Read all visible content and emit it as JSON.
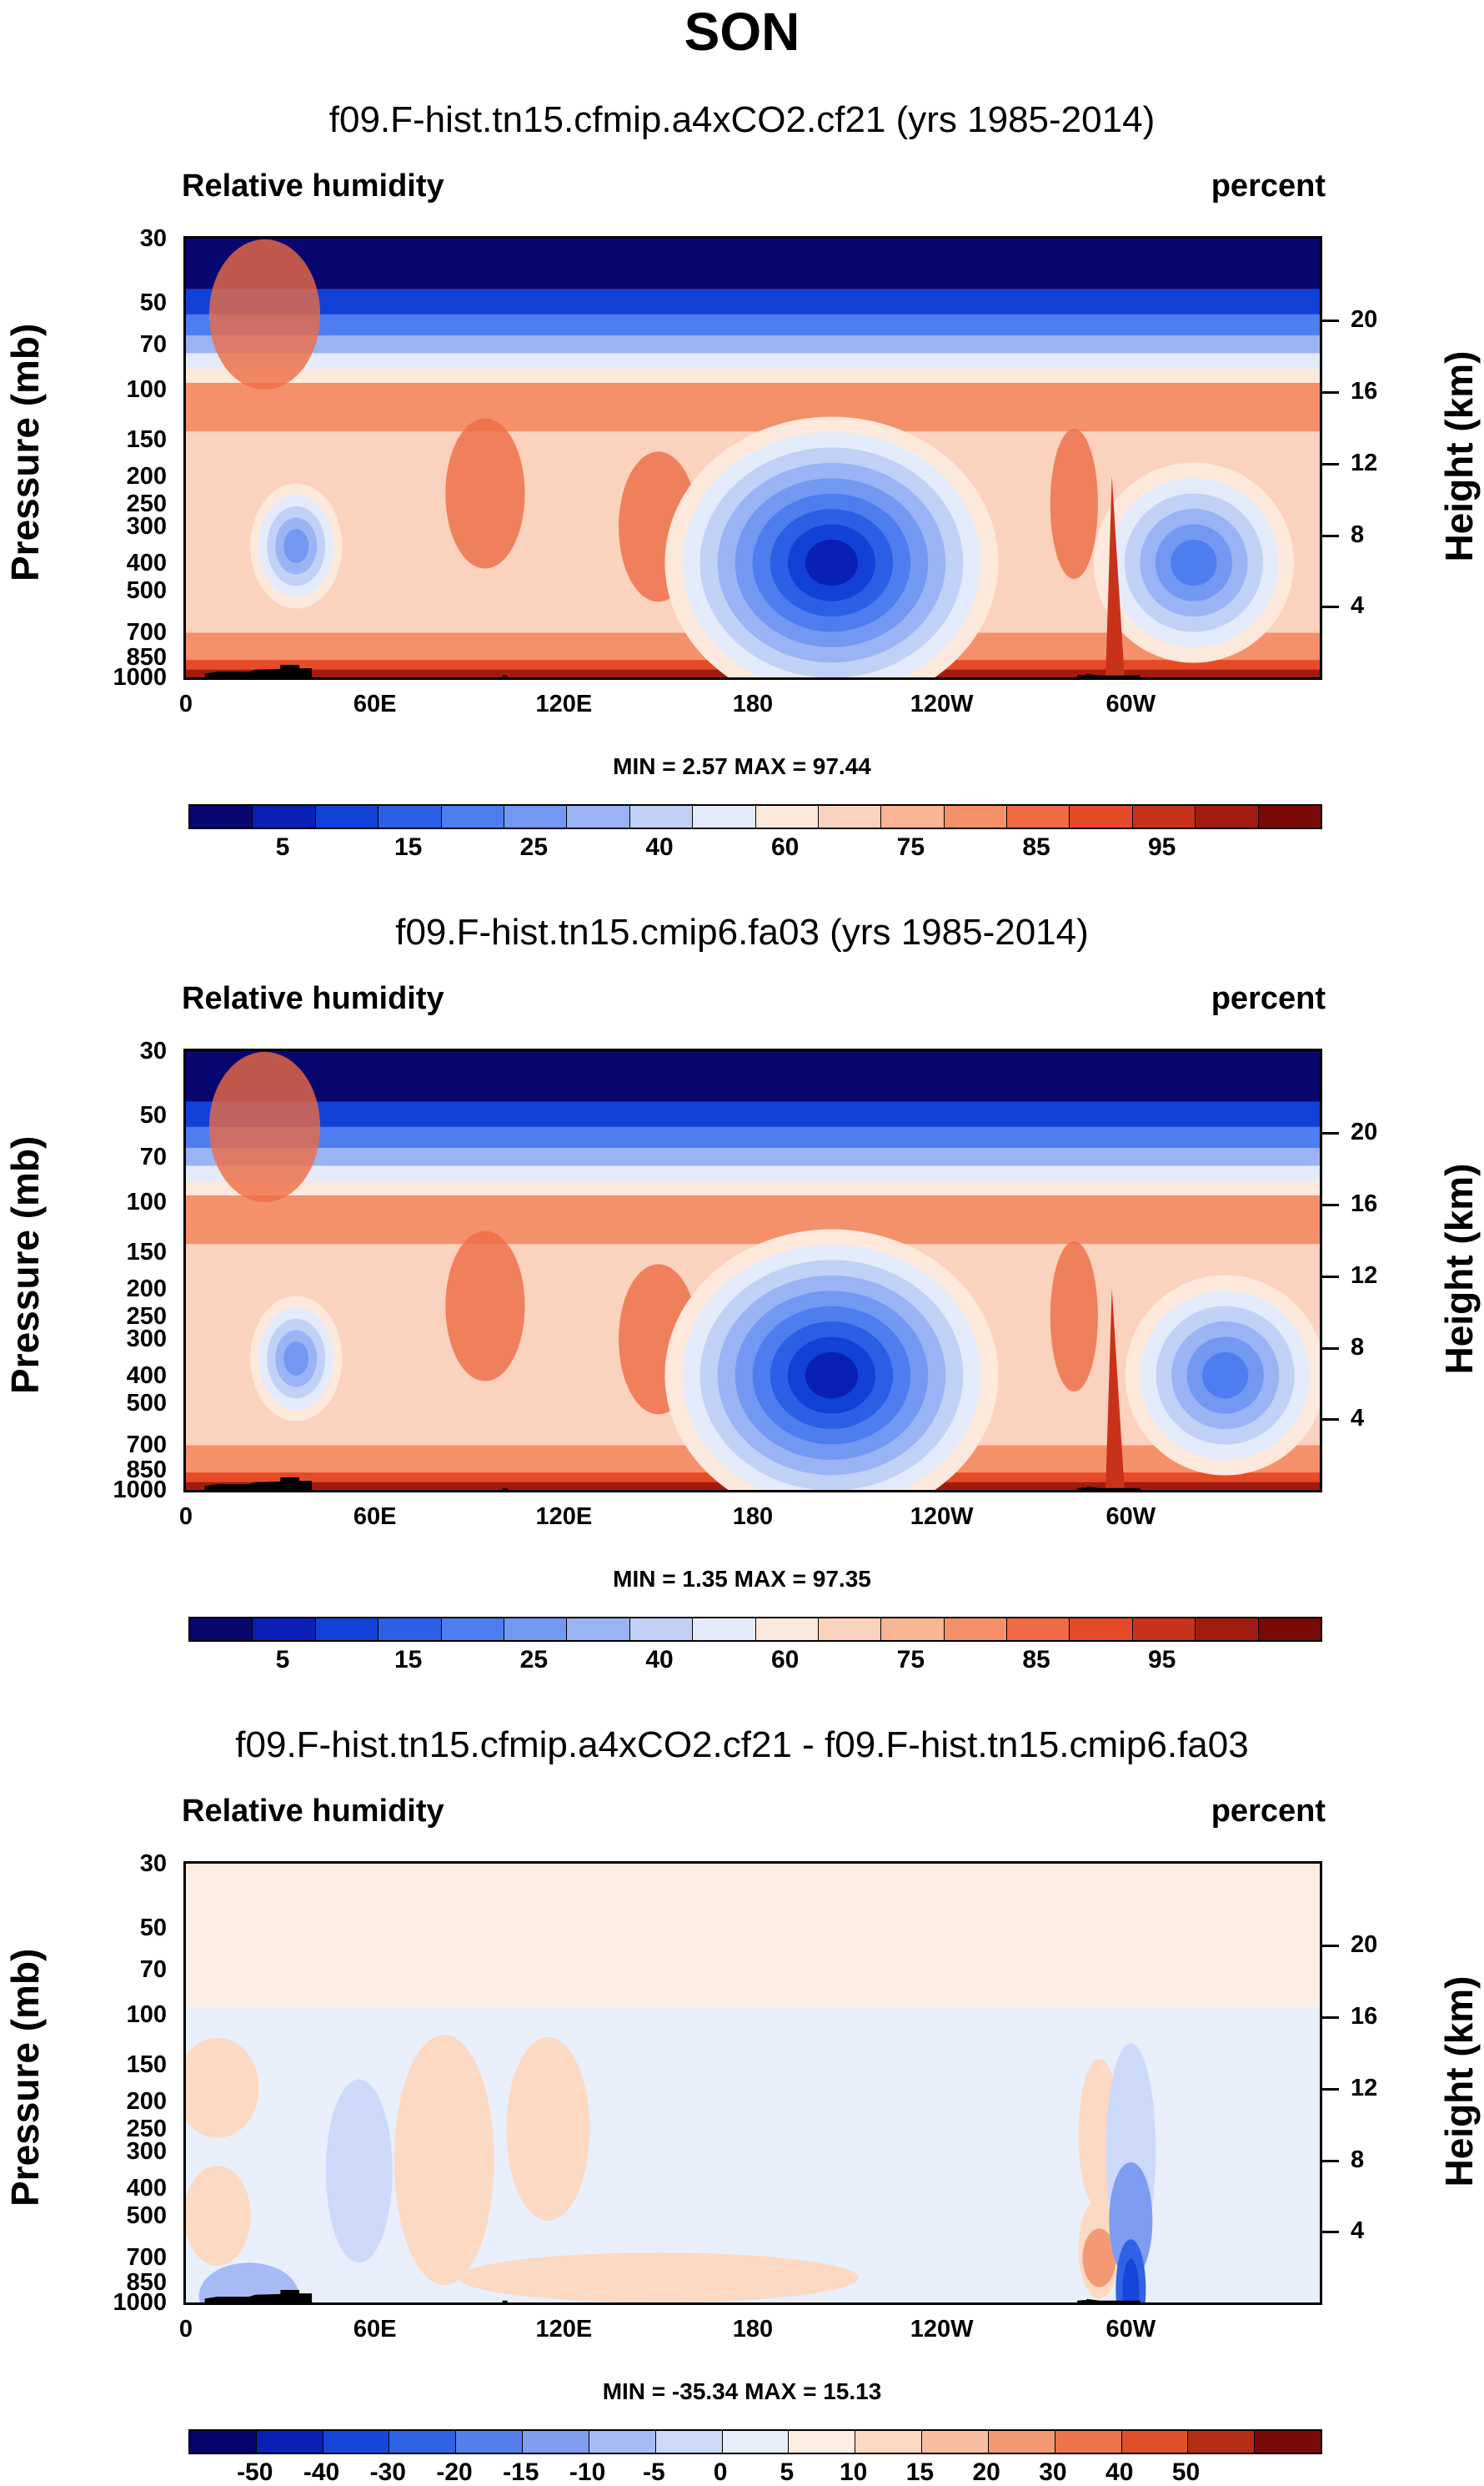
{
  "title": "SON",
  "chart_data": [
    {
      "type": "heatmap",
      "title": "f09.F-hist.tn15.cfmip.a4xCO2.cf21 (yrs 1985-2014)",
      "left_string": "Relative humidity",
      "right_string": "percent",
      "xlabel": "",
      "ylabel": "Pressure (mb)",
      "ylabel_right": "Height (km)",
      "xticks": [
        "0",
        "60E",
        "120E",
        "180",
        "120W",
        "60W"
      ],
      "pressure_ticks": [
        "30",
        "50",
        "70",
        "100",
        "150",
        "200",
        "250",
        "300",
        "400",
        "500",
        "700",
        "850",
        "1000"
      ],
      "height_ticks": [
        "20",
        "16",
        "12",
        "8",
        "4"
      ],
      "min_max": "MIN =  2.57  MAX = 97.44",
      "colorbar_labels": [
        "5",
        "15",
        "25",
        "40",
        "60",
        "75",
        "85",
        "95"
      ],
      "levels": [
        5,
        10,
        15,
        20,
        25,
        30,
        40,
        50,
        60,
        65,
        75,
        80,
        85,
        90,
        95
      ],
      "features": [
        {
          "name": "dry-central-pacific",
          "lon": 205,
          "pressure": 400,
          "value": 5
        },
        {
          "name": "dry-africa",
          "lon": 35,
          "pressure": 350,
          "value": 25
        },
        {
          "name": "dry-atlantic",
          "lon": 320,
          "pressure": 400,
          "value": 10
        },
        {
          "name": "moist-boundary-layer",
          "lon": 180,
          "pressure": 950,
          "value": 90
        }
      ]
    },
    {
      "type": "heatmap",
      "title": "f09.F-hist.tn15.cmip6.fa03 (yrs 1985-2014)",
      "left_string": "Relative humidity",
      "right_string": "percent",
      "xlabel": "",
      "ylabel": "Pressure (mb)",
      "ylabel_right": "Height (km)",
      "xticks": [
        "0",
        "60E",
        "120E",
        "180",
        "120W",
        "60W"
      ],
      "pressure_ticks": [
        "30",
        "50",
        "70",
        "100",
        "150",
        "200",
        "250",
        "300",
        "400",
        "500",
        "700",
        "850",
        "1000"
      ],
      "height_ticks": [
        "20",
        "16",
        "12",
        "8",
        "4"
      ],
      "min_max": "MIN =  1.35  MAX = 97.35",
      "colorbar_labels": [
        "5",
        "15",
        "25",
        "40",
        "60",
        "75",
        "85",
        "95"
      ],
      "levels": [
        5,
        10,
        15,
        20,
        25,
        30,
        40,
        50,
        60,
        65,
        75,
        80,
        85,
        90,
        95
      ],
      "features": [
        {
          "name": "dry-central-pacific",
          "lon": 205,
          "pressure": 400,
          "value": 5
        },
        {
          "name": "dry-africa",
          "lon": 35,
          "pressure": 350,
          "value": 25
        },
        {
          "name": "dry-atlantic",
          "lon": 330,
          "pressure": 400,
          "value": 15
        },
        {
          "name": "moist-boundary-layer",
          "lon": 180,
          "pressure": 950,
          "value": 90
        }
      ]
    },
    {
      "type": "heatmap",
      "title": "f09.F-hist.tn15.cfmip.a4xCO2.cf21 - f09.F-hist.tn15.cmip6.fa03",
      "left_string": "Relative humidity",
      "right_string": "percent",
      "xlabel": "",
      "ylabel": "Pressure (mb)",
      "ylabel_right": "Height (km)",
      "xticks": [
        "0",
        "60E",
        "120E",
        "180",
        "120W",
        "60W"
      ],
      "pressure_ticks": [
        "30",
        "50",
        "70",
        "100",
        "150",
        "200",
        "250",
        "300",
        "400",
        "500",
        "700",
        "850",
        "1000"
      ],
      "height_ticks": [
        "20",
        "16",
        "12",
        "8",
        "4"
      ],
      "min_max": "MIN = -35.34  MAX = 15.13",
      "colorbar_labels": [
        "-50",
        "-40",
        "-30",
        "-20",
        "-15",
        "-10",
        "-5",
        "0",
        "5",
        "10",
        "15",
        "20",
        "30",
        "40",
        "50"
      ],
      "levels": [
        -50,
        -40,
        -30,
        -20,
        -15,
        -10,
        -5,
        0,
        5,
        10,
        15,
        20,
        30,
        40,
        50
      ],
      "features": [
        {
          "name": "drying-south-america",
          "lon": 300,
          "pressure": 500,
          "value": -25
        },
        {
          "name": "drying-andes-low",
          "lon": 298,
          "pressure": 900,
          "value": -35
        },
        {
          "name": "moistening-pacific",
          "lon": 105,
          "pressure": 300,
          "value": 5
        }
      ]
    }
  ],
  "colors": {
    "rh_palette": [
      "#08066f",
      "#0a1fb5",
      "#1241d8",
      "#2a5fe6",
      "#4e7df0",
      "#7398f2",
      "#9ab3f4",
      "#c1d1f6",
      "#e3ebfa",
      "#fde8dc",
      "#fbd2bd",
      "#f8b494",
      "#f4906a",
      "#ee6b43",
      "#e64b27",
      "#c9321a",
      "#a11b10",
      "#7a0a07"
    ],
    "diff_palette": [
      "#06056a",
      "#0a1fb5",
      "#1545db",
      "#3063e4",
      "#567fec",
      "#7e9cf0",
      "#a6bbf4",
      "#cdd9f8",
      "#e8effb",
      "#fdeee3",
      "#fbd9c3",
      "#f8bd9f",
      "#f39a75",
      "#ec744b",
      "#de4f2a",
      "#b52c16",
      "#7a0a07"
    ],
    "topography": "#000000"
  }
}
